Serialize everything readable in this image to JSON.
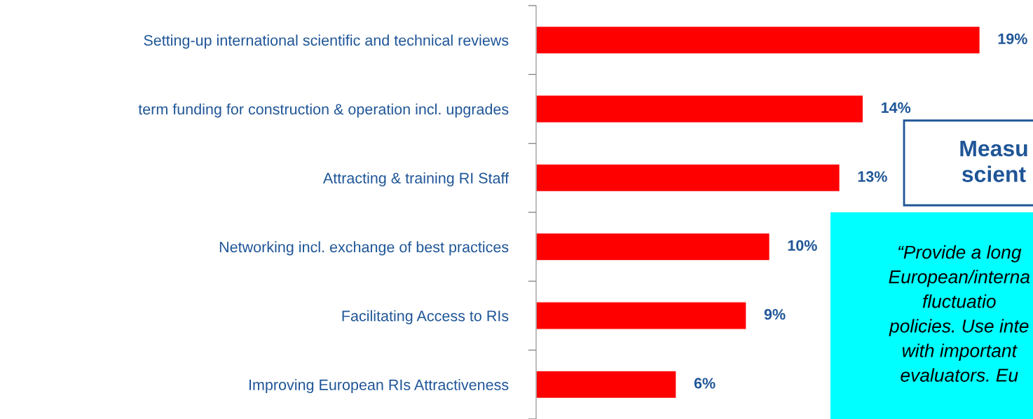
{
  "chart_data": {
    "type": "bar",
    "orientation": "horizontal",
    "categories": [
      "Setting-up international scientific and technical reviews",
      "term funding for construction & operation incl. upgrades",
      "Attracting & training RI Staff",
      "Networking incl. exchange of best practices",
      "Facilitating Access to RIs",
      "Improving European RIs Attractiveness"
    ],
    "values": [
      19,
      14,
      13,
      10,
      9,
      6
    ],
    "value_labels": [
      "19%",
      "14%",
      "13%",
      "10%",
      "9%",
      "6%"
    ],
    "color": "#ff0000",
    "tick_labels": "y",
    "grid": false,
    "legend": false,
    "annotations": [
      "Measu\nscient",
      "“Provide a long\nEuropean/interna\nfluctuatio\npolicies. Use inte\nwith important\nevaluators. Eu"
    ]
  }
}
